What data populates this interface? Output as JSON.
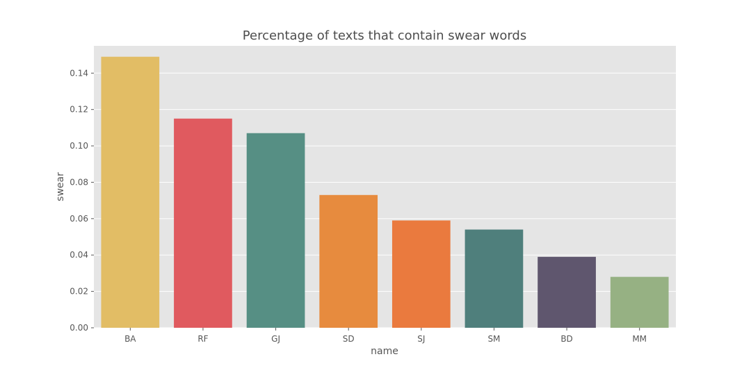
{
  "chart_data": {
    "type": "bar",
    "title": "Percentage of texts that contain swear words",
    "xlabel": "name",
    "ylabel": "swear",
    "categories": [
      "BA",
      "RF",
      "GJ",
      "SD",
      "SJ",
      "SM",
      "BD",
      "MM"
    ],
    "values": [
      0.149,
      0.115,
      0.107,
      0.073,
      0.059,
      0.054,
      0.039,
      0.028
    ],
    "colors": [
      "#e2bd65",
      "#e05a5f",
      "#568f84",
      "#e78b3e",
      "#ea7a3e",
      "#4f7f7c",
      "#5f566e",
      "#96b183"
    ],
    "ylim": [
      0,
      0.155
    ],
    "yticks": [
      "0.00",
      "0.02",
      "0.04",
      "0.06",
      "0.08",
      "0.10",
      "0.12",
      "0.14"
    ],
    "grid": true,
    "background": "#e5e5e5"
  }
}
